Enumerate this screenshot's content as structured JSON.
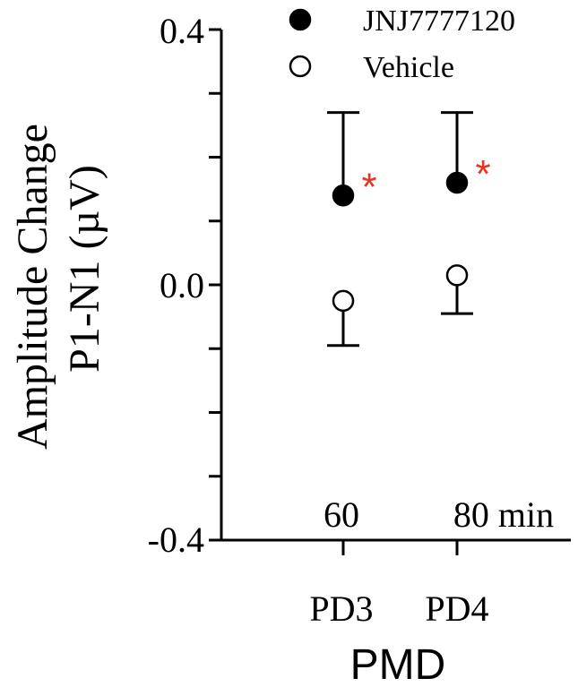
{
  "chart_data": {
    "type": "scatter",
    "ylabel_line1": "Amplitude Change",
    "ylabel_line2": "P1-N1 (µV)",
    "xlabel": "PMD",
    "ylim": [
      -0.4,
      0.4
    ],
    "yticks": [
      "0.4",
      "0.0",
      "-0.4"
    ],
    "yticks_values": [
      0.4,
      0.0,
      -0.4
    ],
    "categories": [
      "PD3",
      "PD4"
    ],
    "time_labels": [
      "60",
      "80 min"
    ],
    "series": [
      {
        "name": "JNJ7777120",
        "marker": "filled-circle",
        "values": [
          0.14,
          0.16
        ],
        "error_upper": [
          0.27,
          0.27
        ],
        "significance": [
          "*",
          "*"
        ]
      },
      {
        "name": "Vehicle",
        "marker": "open-circle",
        "values": [
          -0.025,
          0.015
        ],
        "error_lower": [
          -0.095,
          -0.045
        ]
      }
    ],
    "significance_color": "#e8341c",
    "legend_position": "top-right"
  }
}
